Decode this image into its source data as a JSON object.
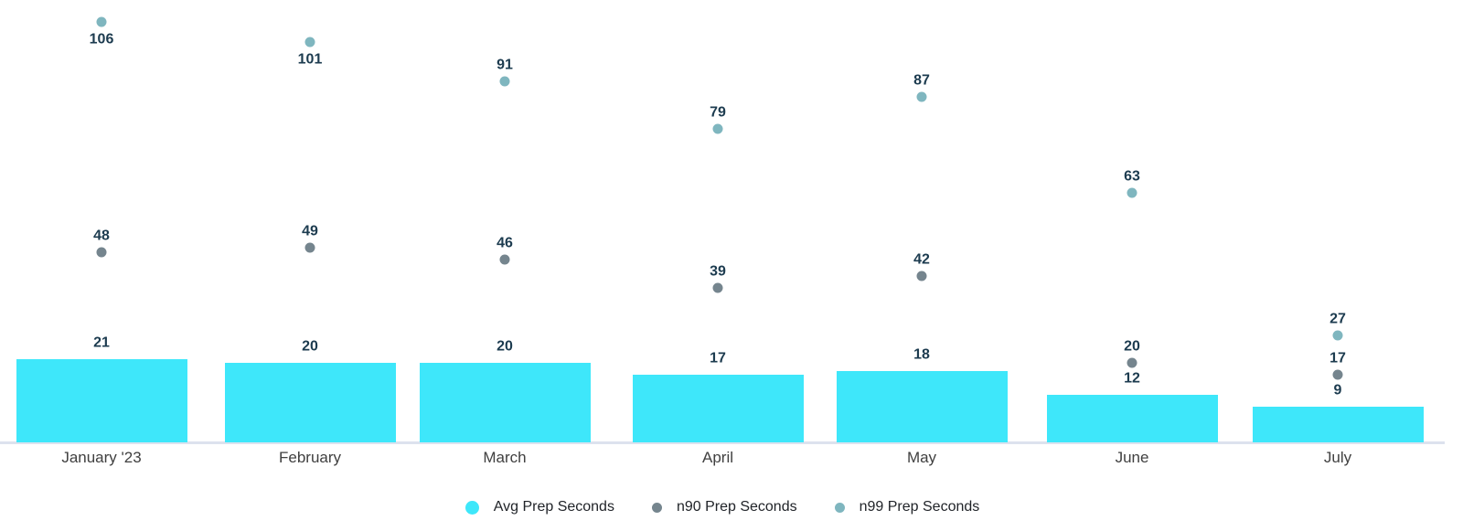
{
  "chart_data": {
    "type": "bar",
    "subtype": "combo-bar-scatter",
    "title": "",
    "xlabel": "",
    "ylabel": "",
    "categories": [
      "January '23",
      "February",
      "March",
      "April",
      "May",
      "June",
      "July"
    ],
    "series": [
      {
        "name": "Avg Prep Seconds",
        "render": "bar",
        "color": "#3EE7FA",
        "values": [
          21,
          20,
          20,
          17,
          18,
          12,
          9
        ]
      },
      {
        "name": "n90 Prep Seconds",
        "render": "scatter",
        "color": "#75858E",
        "values": [
          48,
          49,
          46,
          39,
          42,
          20,
          17
        ]
      },
      {
        "name": "n99 Prep Seconds",
        "render": "scatter",
        "color": "#7FB6BF",
        "values": [
          106,
          101,
          91,
          79,
          87,
          63,
          27
        ]
      }
    ],
    "data_labels_visible": true,
    "data_label_color": "#1C3B4F",
    "axis_line_color": "#DDE2EE",
    "x_tick_color": "#404040",
    "background_color": "#FFFFFF",
    "ylim": [
      0,
      111.5
    ],
    "grid": false,
    "y_axis_labels_visible": false,
    "legend_position": "bottom-center"
  },
  "legend": {
    "items": [
      {
        "label": "Avg Prep Seconds"
      },
      {
        "label": "n90 Prep Seconds"
      },
      {
        "label": "n99 Prep Seconds"
      }
    ]
  }
}
